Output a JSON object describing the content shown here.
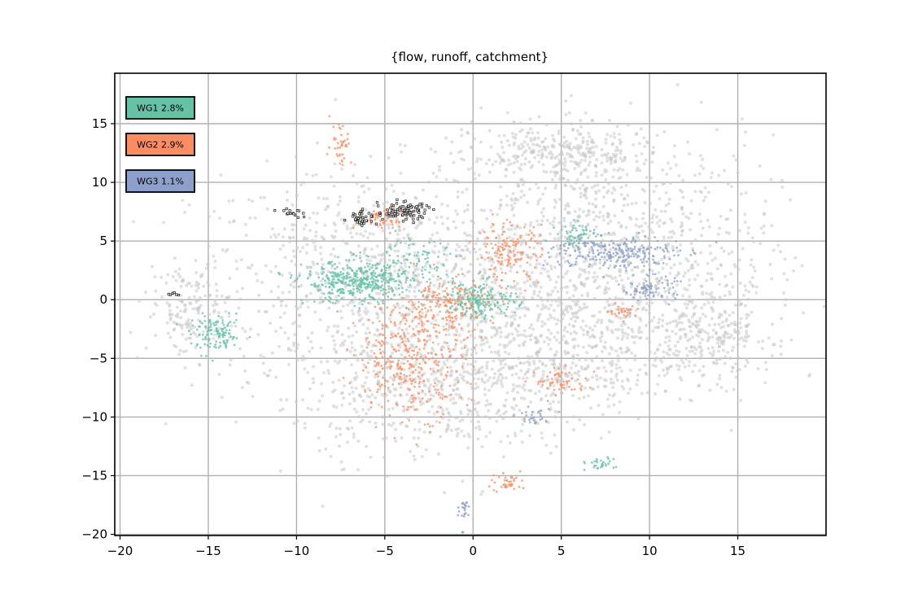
{
  "chart_data": {
    "type": "scatter",
    "title": "{flow, runoff, catchment}",
    "xlabel": "",
    "ylabel": "",
    "xlim": [
      -20.3,
      20.0
    ],
    "ylim": [
      -20.1,
      19.3
    ],
    "grid": true,
    "legend_position": "top-left",
    "x_ticks": [
      -20,
      -15,
      -10,
      -5,
      0,
      5,
      10,
      15
    ],
    "y_ticks": [
      -20,
      -15,
      -10,
      -5,
      0,
      5,
      10,
      15
    ],
    "x_tick_labels": [
      "−20",
      "−15",
      "−10",
      "−5",
      "0",
      "5",
      "10",
      "15"
    ],
    "y_tick_labels": [
      "−20",
      "−15",
      "−10",
      "−5",
      "0",
      "5",
      "10",
      "15"
    ],
    "series": [
      {
        "name": "WG1 2.8%",
        "color": "#66c2a5"
      },
      {
        "name": "WG2 2.9%",
        "color": "#fc8d62"
      },
      {
        "name": "WG3 1.1%",
        "color": "#8da0cb"
      }
    ],
    "background_color": "#c8c8c8",
    "highlight_color": "#1a1a1a",
    "regions": {
      "background": [
        {
          "x": -5.5,
          "y": 1.5,
          "rx": 10.5,
          "ry": 9.5,
          "n": 900
        },
        {
          "x": 7.5,
          "y": 4.5,
          "rx": 9.5,
          "ry": 9.5,
          "n": 900
        },
        {
          "x": 5.0,
          "y": -3.5,
          "rx": 8.5,
          "ry": 6.0,
          "n": 600
        },
        {
          "x": -2.0,
          "y": -8.0,
          "rx": 8.0,
          "ry": 5.5,
          "n": 500
        },
        {
          "x": 13.5,
          "y": -2.5,
          "rx": 3.5,
          "ry": 4.5,
          "n": 250
        },
        {
          "x": -16.0,
          "y": -1.0,
          "rx": 2.5,
          "ry": 4.0,
          "n": 150
        },
        {
          "x": 5.0,
          "y": 12.5,
          "rx": 5.0,
          "ry": 2.5,
          "n": 300
        }
      ],
      "wg1": [
        {
          "x": -6.5,
          "y": 1.5,
          "rx": 3.0,
          "ry": 1.8,
          "n": 420
        },
        {
          "x": 0.5,
          "y": 0.0,
          "rx": 2.0,
          "ry": 1.5,
          "n": 180
        },
        {
          "x": -14.5,
          "y": -3.0,
          "rx": 1.5,
          "ry": 1.5,
          "n": 120
        },
        {
          "x": 6.0,
          "y": 5.5,
          "rx": 1.2,
          "ry": 1.0,
          "n": 60
        },
        {
          "x": 7.0,
          "y": -14.0,
          "rx": 1.0,
          "ry": 0.5,
          "n": 30
        },
        {
          "x": -3.0,
          "y": 3.5,
          "rx": 2.5,
          "ry": 2.0,
          "n": 80
        }
      ],
      "wg2": [
        {
          "x": -3.5,
          "y": -5.0,
          "rx": 3.0,
          "ry": 5.0,
          "n": 350
        },
        {
          "x": -1.5,
          "y": -0.5,
          "rx": 2.5,
          "ry": 2.5,
          "n": 200
        },
        {
          "x": 2.0,
          "y": 4.0,
          "rx": 1.8,
          "ry": 2.5,
          "n": 150
        },
        {
          "x": -5.0,
          "y": 7.0,
          "rx": 1.5,
          "ry": 1.0,
          "n": 60
        },
        {
          "x": -7.5,
          "y": 13.5,
          "rx": 0.6,
          "ry": 2.0,
          "n": 40
        },
        {
          "x": 8.5,
          "y": -1.0,
          "rx": 0.8,
          "ry": 0.5,
          "n": 30
        },
        {
          "x": 2.0,
          "y": -15.5,
          "rx": 1.0,
          "ry": 1.0,
          "n": 40
        },
        {
          "x": 5.0,
          "y": -7.0,
          "rx": 1.5,
          "ry": 1.0,
          "n": 60
        }
      ],
      "wg3": [
        {
          "x": 8.0,
          "y": 4.0,
          "rx": 3.5,
          "ry": 1.5,
          "n": 250
        },
        {
          "x": 10.0,
          "y": 1.0,
          "rx": 1.5,
          "ry": 1.0,
          "n": 80
        },
        {
          "x": -0.5,
          "y": -18.0,
          "rx": 0.3,
          "ry": 1.5,
          "n": 25
        },
        {
          "x": 3.5,
          "y": -10.0,
          "rx": 1.0,
          "ry": 1.0,
          "n": 30
        }
      ],
      "highlight": [
        {
          "x": -4.0,
          "y": 7.5,
          "rx": 1.5,
          "ry": 0.8,
          "n": 90
        },
        {
          "x": -6.2,
          "y": 7.0,
          "rx": 0.8,
          "ry": 0.6,
          "n": 40
        },
        {
          "x": -10.5,
          "y": 7.5,
          "rx": 0.8,
          "ry": 0.4,
          "n": 15
        },
        {
          "x": -17.0,
          "y": 0.5,
          "rx": 0.5,
          "ry": 0.2,
          "n": 6
        }
      ]
    }
  }
}
